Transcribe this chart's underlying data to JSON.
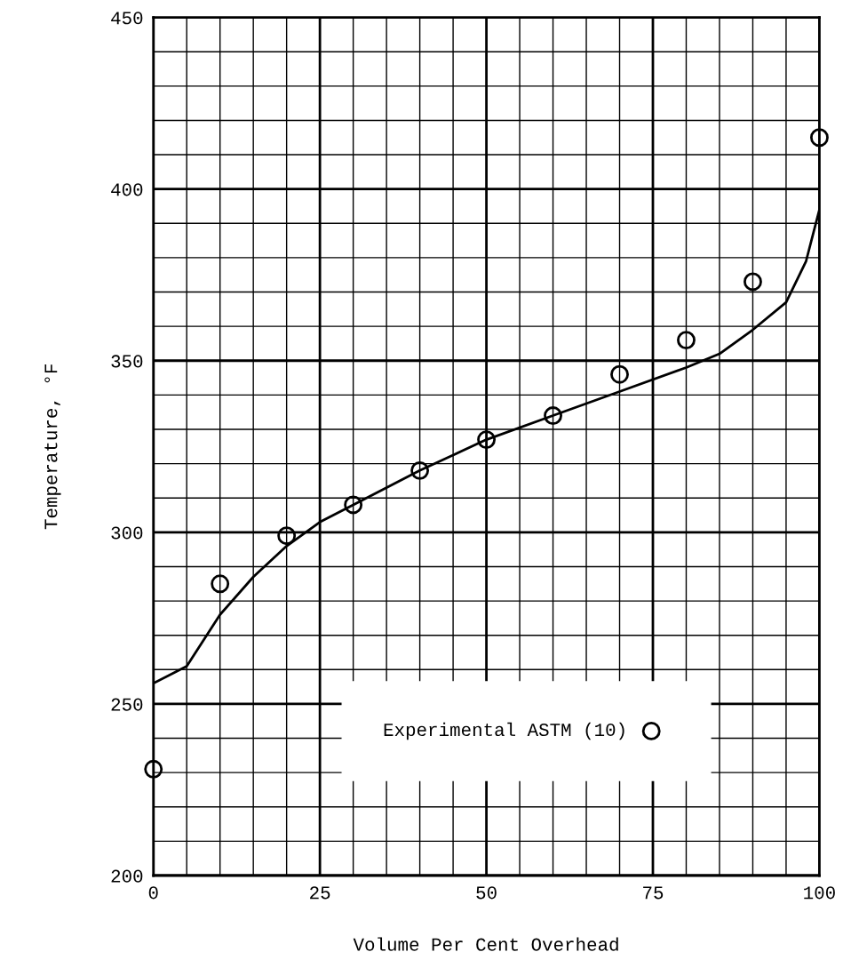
{
  "chart_data": {
    "type": "scatter",
    "xlabel": "Volume Per Cent Overhead",
    "ylabel": "Temperature, °F",
    "xlim": [
      0,
      100
    ],
    "ylim": [
      200,
      450
    ],
    "xticks": [
      0,
      {
        "value": 5,
        "label": null
      },
      {
        "value": 10,
        "label": null
      },
      {
        "value": 15,
        "label": null
      },
      {
        "value": 20,
        "label": null
      },
      25,
      {
        "value": 30,
        "label": null
      },
      {
        "value": 35,
        "label": null
      },
      {
        "value": 40,
        "label": null
      },
      {
        "value": 45,
        "label": null
      },
      50,
      {
        "value": 55,
        "label": null
      },
      {
        "value": 60,
        "label": null
      },
      {
        "value": 65,
        "label": null
      },
      {
        "value": 70,
        "label": null
      },
      75,
      {
        "value": 80,
        "label": null
      },
      {
        "value": 85,
        "label": null
      },
      {
        "value": 90,
        "label": null
      },
      {
        "value": 95,
        "label": null
      },
      100
    ],
    "yticks": [
      200,
      {
        "value": 210,
        "label": null
      },
      {
        "value": 220,
        "label": null
      },
      {
        "value": 230,
        "label": null
      },
      {
        "value": 240,
        "label": null
      },
      250,
      {
        "value": 260,
        "label": null
      },
      {
        "value": 270,
        "label": null
      },
      {
        "value": 280,
        "label": null
      },
      {
        "value": 290,
        "label": null
      },
      300,
      {
        "value": 310,
        "label": null
      },
      {
        "value": 320,
        "label": null
      },
      {
        "value": 330,
        "label": null
      },
      {
        "value": 340,
        "label": null
      },
      350,
      {
        "value": 360,
        "label": null
      },
      {
        "value": 370,
        "label": null
      },
      {
        "value": 380,
        "label": null
      },
      {
        "value": 390,
        "label": null
      },
      400,
      {
        "value": 410,
        "label": null
      },
      {
        "value": 420,
        "label": null
      },
      {
        "value": 430,
        "label": null
      },
      {
        "value": 440,
        "label": null
      },
      450
    ],
    "grid": true,
    "legend": "bottom",
    "series": [
      {
        "type": "line",
        "color": "#000000",
        "marker": "none",
        "x": [
          0,
          5,
          10,
          15,
          20,
          25,
          30,
          40,
          50,
          60,
          70,
          80,
          85,
          90,
          95,
          98,
          100
        ],
        "values": [
          256,
          261,
          276,
          287,
          296,
          303,
          308,
          318,
          327,
          334,
          341,
          348,
          352,
          359,
          367,
          379,
          394
        ]
      },
      {
        "name": "Experimental ASTM (10)",
        "color": "#000000",
        "marker": "circle",
        "x": [
          0,
          10,
          20,
          30,
          40,
          50,
          60,
          70,
          80,
          90,
          100
        ],
        "values": [
          231,
          285,
          299,
          308,
          318,
          327,
          334,
          346,
          356,
          373,
          415
        ]
      }
    ]
  }
}
